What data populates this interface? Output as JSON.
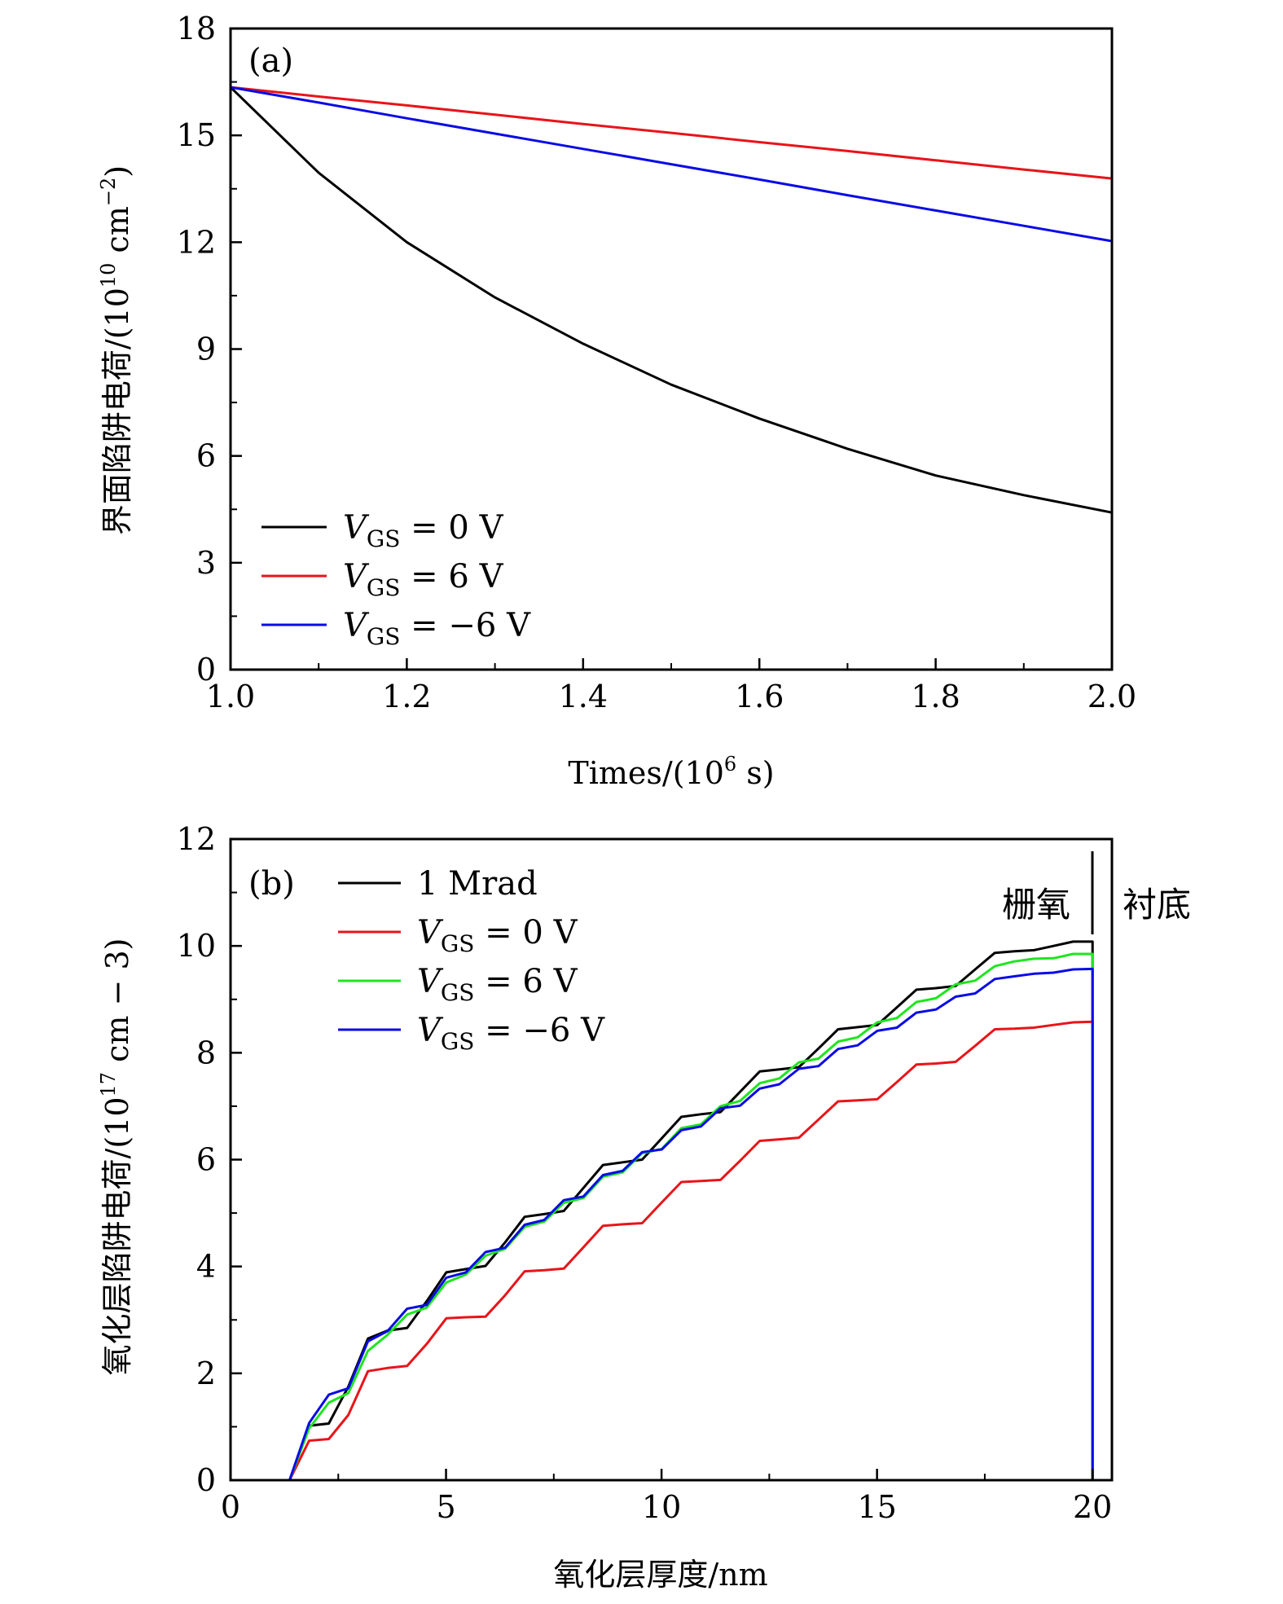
{
  "chart_data": [
    {
      "type": "line",
      "panel_label": "(a)",
      "xlabel": "Times/(10^6 s)",
      "xlabel_parts": {
        "main": "Times/(10",
        "sup": "6",
        "tail": " s)"
      },
      "ylabel": "界面陷阱电荷/(10^10 cm^-2)",
      "ylabel_parts": {
        "main": "界面陷阱电荷/(10",
        "sup": "10",
        "mid": " cm",
        "sup2": "−2",
        "tail": ")"
      },
      "xlim": [
        1.0,
        2.0
      ],
      "ylim": [
        0,
        18
      ],
      "xticks": [
        1.0,
        1.2,
        1.4,
        1.6,
        1.8,
        2.0
      ],
      "xtick_labels": [
        "1.0",
        "1.2",
        "1.4",
        "1.6",
        "1.8",
        "2.0"
      ],
      "xminor": [
        1.1,
        1.3,
        1.5,
        1.7,
        1.9
      ],
      "yticks": [
        0,
        3,
        6,
        9,
        12,
        15,
        18
      ],
      "ytick_labels": [
        "0",
        "3",
        "6",
        "9",
        "12",
        "15",
        "18"
      ],
      "yminor": [
        1.5,
        4.5,
        7.5,
        10.5,
        13.5,
        16.5
      ],
      "grid": false,
      "legend_position": "bottom-left",
      "x": [
        1.0,
        1.1,
        1.2,
        1.3,
        1.4,
        1.5,
        1.6,
        1.7,
        1.8,
        1.9,
        2.0
      ],
      "series": [
        {
          "name": "V_GS = 0 V",
          "label_main": "V",
          "label_sub": "GS",
          "label_tail": " = 0 V",
          "color": "#000000",
          "values": [
            16.35,
            13.95,
            12.0,
            10.45,
            9.15,
            8.0,
            7.05,
            6.2,
            5.45,
            4.9,
            4.41
          ]
        },
        {
          "name": "V_GS = 6 V",
          "label_main": "V",
          "label_sub": "GS",
          "label_tail": " = 6 V",
          "color": "#e8141a",
          "values": [
            16.35,
            16.09,
            15.84,
            15.58,
            15.32,
            15.07,
            14.81,
            14.56,
            14.3,
            14.04,
            13.79
          ]
        },
        {
          "name": "V_GS = −6 V",
          "label_main": "V",
          "label_sub": "GS",
          "label_tail": " = −6 V",
          "color": "#0a0ae6",
          "values": [
            16.35,
            15.92,
            15.48,
            15.05,
            14.62,
            14.19,
            13.76,
            13.32,
            12.89,
            12.46,
            12.03
          ]
        }
      ]
    },
    {
      "type": "line",
      "panel_label": "(b)",
      "xlabel": "氧化层厚度/nm",
      "ylabel": "氧化层陷阱电荷/(10^17 cm−3)",
      "ylabel_parts": {
        "main": "氧化层陷阱电荷/(10",
        "sup": "17",
        "tail": " cm − 3)"
      },
      "xlim": [
        0,
        20.45
      ],
      "ylim": [
        0,
        12
      ],
      "xticks": [
        0,
        5,
        10,
        15,
        20
      ],
      "xtick_labels": [
        "0",
        "5",
        "10",
        "15",
        "20"
      ],
      "xminor": [
        2.5,
        7.5,
        12.5,
        17.5
      ],
      "yticks": [
        0,
        2,
        4,
        6,
        8,
        10,
        12
      ],
      "ytick_labels": [
        "0",
        "2",
        "4",
        "6",
        "8",
        "10",
        "12"
      ],
      "yminor": [
        1,
        3,
        5,
        7,
        9,
        11
      ],
      "grid": false,
      "legend_position": "top-left",
      "annotations": {
        "gate_oxide": "栅氧",
        "substrate": "衬底",
        "boundary_x": 20
      },
      "x_start": 1.37,
      "x_step": 0.4545,
      "series": [
        {
          "name": "1 Mrad",
          "label_main": "1 Mrad",
          "label_sub": "",
          "label_tail": "",
          "color": "#000000",
          "values": [
            0,
            1.02,
            1.06,
            1.75,
            2.65,
            2.8,
            2.85,
            3.35,
            3.89,
            3.95,
            4.01,
            4.45,
            4.93,
            4.98,
            5.04,
            5.47,
            5.9,
            5.95,
            6.0,
            6.4,
            6.8,
            6.85,
            6.89,
            7.27,
            7.65,
            7.69,
            7.73,
            8.08,
            8.44,
            8.48,
            8.52,
            8.85,
            9.18,
            9.21,
            9.25,
            9.56,
            9.87,
            9.9,
            9.92,
            10.0,
            10.08,
            10.08
          ]
        },
        {
          "name": "V_GS = 0 V",
          "label_main": "V",
          "label_sub": "GS",
          "label_tail": " = 0 V",
          "color": "#e8141a",
          "values": [
            0,
            0.74,
            0.77,
            1.22,
            2.04,
            2.1,
            2.14,
            2.55,
            3.03,
            3.05,
            3.06,
            3.46,
            3.91,
            3.93,
            3.96,
            4.36,
            4.76,
            4.79,
            4.81,
            5.2,
            5.58,
            5.6,
            5.62,
            5.98,
            6.35,
            6.38,
            6.41,
            6.75,
            7.09,
            7.11,
            7.13,
            7.45,
            7.78,
            7.8,
            7.83,
            8.13,
            8.44,
            8.45,
            8.47,
            8.52,
            8.57,
            8.58
          ]
        },
        {
          "name": "V_GS = 6 V",
          "label_main": "V",
          "label_sub": "GS",
          "label_tail": " = 6 V",
          "color": "#1ee61e",
          "values": [
            0,
            0.97,
            1.45,
            1.63,
            2.42,
            2.72,
            3.1,
            3.23,
            3.7,
            3.85,
            4.2,
            4.33,
            4.74,
            4.84,
            5.19,
            5.28,
            5.68,
            5.76,
            6.12,
            6.2,
            6.59,
            6.66,
            7.0,
            7.1,
            7.43,
            7.52,
            7.82,
            7.89,
            8.21,
            8.29,
            8.57,
            8.65,
            8.95,
            9.02,
            9.28,
            9.35,
            9.62,
            9.71,
            9.76,
            9.77,
            9.85,
            9.85
          ]
        },
        {
          "name": "V_GS = −6 V",
          "label_main": "V",
          "label_sub": "GS",
          "label_tail": " = −6 V",
          "color": "#0a0ae6",
          "values": [
            0,
            1.07,
            1.6,
            1.72,
            2.6,
            2.79,
            3.21,
            3.28,
            3.79,
            3.89,
            4.27,
            4.35,
            4.78,
            4.87,
            5.24,
            5.31,
            5.71,
            5.79,
            6.14,
            6.19,
            6.55,
            6.62,
            6.96,
            7.01,
            7.33,
            7.41,
            7.7,
            7.75,
            8.07,
            8.14,
            8.41,
            8.47,
            8.75,
            8.81,
            9.05,
            9.11,
            9.38,
            9.43,
            9.48,
            9.5,
            9.56,
            9.57
          ]
        }
      ]
    }
  ]
}
